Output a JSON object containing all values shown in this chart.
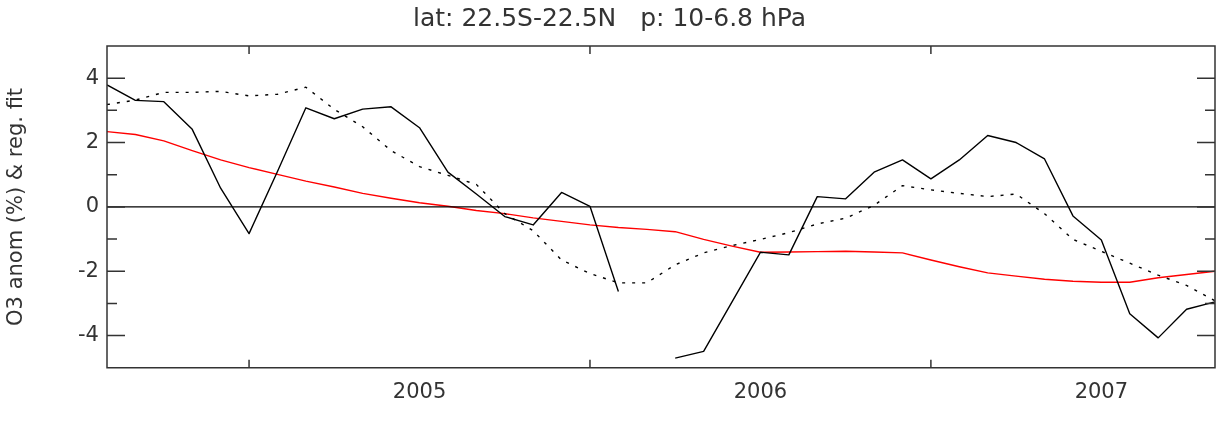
{
  "chart_data": {
    "type": "line",
    "title": "lat: 22.5S-22.5N   p: 10-6.8 hPa",
    "ylabel": "O3 anom (%) & reg. fit",
    "x": [
      "2004-08",
      "2004-09",
      "2004-10",
      "2004-11",
      "2004-12",
      "2005-01",
      "2005-02",
      "2005-03",
      "2005-04",
      "2005-05",
      "2005-06",
      "2005-07",
      "2005-08",
      "2005-09",
      "2005-10",
      "2005-11",
      "2005-12",
      "2006-01",
      "2006-02",
      "2006-03",
      "2006-04",
      "2006-05",
      "2006-06",
      "2006-07",
      "2006-08",
      "2006-09",
      "2006-10",
      "2006-11",
      "2006-12",
      "2007-01",
      "2007-02",
      "2007-03",
      "2007-04",
      "2007-05",
      "2007-06",
      "2007-07",
      "2007-08",
      "2007-09",
      "2007-10",
      "2007-11"
    ],
    "series": [
      {
        "color": "#000000",
        "line_style": "solid",
        "values": [
          3.79,
          3.31,
          3.27,
          2.41,
          0.58,
          -0.83,
          1.1,
          3.08,
          2.74,
          3.04,
          3.11,
          2.46,
          1.08,
          0.4,
          -0.3,
          -0.56,
          0.45,
          0.02,
          -2.63,
          null,
          -4.7,
          -4.49,
          -2.95,
          -1.41,
          -1.49,
          0.32,
          0.25,
          1.08,
          1.46,
          0.87,
          1.46,
          2.22,
          2.0,
          1.49,
          -0.28,
          -1.03,
          -3.32,
          -4.07,
          -3.18,
          -2.95
        ]
      },
      {
        "color": "#000000",
        "line_style": "dotted",
        "values": [
          3.18,
          3.32,
          3.56,
          3.56,
          3.59,
          3.45,
          3.5,
          3.72,
          3.03,
          2.49,
          1.75,
          1.25,
          0.98,
          0.7,
          -0.21,
          -0.74,
          -1.65,
          -2.07,
          -2.36,
          -2.36,
          -1.8,
          -1.43,
          -1.2,
          -1.01,
          -0.8,
          -0.53,
          -0.35,
          0.05,
          0.66,
          0.53,
          0.42,
          0.32,
          0.4,
          -0.21,
          -1.01,
          -1.38,
          -1.75,
          -2.12,
          -2.44,
          -2.92
        ]
      },
      {
        "color": "#ff0000",
        "line_style": "solid",
        "values": [
          2.34,
          2.25,
          2.05,
          1.75,
          1.46,
          1.22,
          1.01,
          0.8,
          0.62,
          0.42,
          0.27,
          0.13,
          0.02,
          -0.11,
          -0.21,
          -0.34,
          -0.45,
          -0.56,
          -0.64,
          -0.7,
          -0.77,
          -1.01,
          -1.22,
          -1.41,
          -1.4,
          -1.39,
          -1.38,
          -1.4,
          -1.43,
          -1.65,
          -1.86,
          -2.05,
          -2.15,
          -2.25,
          -2.31,
          -2.34,
          -2.34,
          -2.2,
          -2.1,
          -2.0
        ]
      }
    ],
    "xlim": [
      "2004-08",
      "2007-11"
    ],
    "xticks": [
      {
        "value": "2005-01",
        "label": null
      },
      {
        "value": "2005-07",
        "label": "2005"
      },
      {
        "value": "2006-01",
        "label": null
      },
      {
        "value": "2006-07",
        "label": "2006"
      },
      {
        "value": "2007-01",
        "label": null
      },
      {
        "value": "2007-07",
        "label": "2007"
      }
    ],
    "ylim": [
      -5,
      5
    ],
    "yticks": [
      -4,
      {
        "value": -3,
        "label": null
      },
      -2,
      {
        "value": -1,
        "label": null
      },
      0,
      {
        "value": 1,
        "label": null
      },
      2,
      {
        "value": 3,
        "label": null
      },
      4
    ],
    "ref_lines": [
      {
        "axis": "y",
        "value": 0,
        "color": "#000000",
        "line_style": "solid"
      }
    ],
    "marker": "none"
  }
}
